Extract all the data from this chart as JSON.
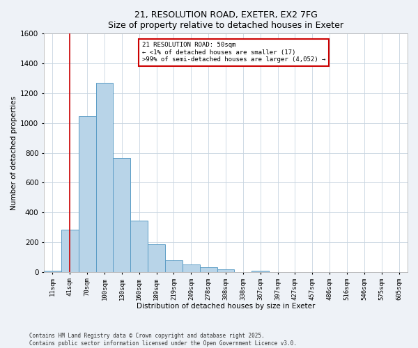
{
  "title": "21, RESOLUTION ROAD, EXETER, EX2 7FG",
  "subtitle": "Size of property relative to detached houses in Exeter",
  "xlabel": "Distribution of detached houses by size in Exeter",
  "ylabel": "Number of detached properties",
  "categories": [
    "11sqm",
    "41sqm",
    "70sqm",
    "100sqm",
    "130sqm",
    "160sqm",
    "189sqm",
    "219sqm",
    "249sqm",
    "278sqm",
    "308sqm",
    "338sqm",
    "367sqm",
    "397sqm",
    "427sqm",
    "457sqm",
    "486sqm",
    "516sqm",
    "546sqm",
    "575sqm",
    "605sqm"
  ],
  "values": [
    10,
    285,
    1045,
    1270,
    765,
    345,
    185,
    80,
    50,
    32,
    20,
    0,
    10,
    0,
    0,
    0,
    0,
    0,
    0,
    0,
    0
  ],
  "bar_color": "#b8d4e8",
  "bar_edge_color": "#5a9cc5",
  "vline_x": 1,
  "vline_color": "#cc0000",
  "ylim": [
    0,
    1600
  ],
  "yticks": [
    0,
    200,
    400,
    600,
    800,
    1000,
    1200,
    1400,
    1600
  ],
  "annotation_title": "21 RESOLUTION ROAD: 50sqm",
  "annotation_line1": "← <1% of detached houses are smaller (17)",
  "annotation_line2": ">99% of semi-detached houses are larger (4,052) →",
  "annotation_box_color": "#ffffff",
  "annotation_box_edge": "#cc0000",
  "footnote1": "Contains HM Land Registry data © Crown copyright and database right 2025.",
  "footnote2": "Contains public sector information licensed under the Open Government Licence v3.0.",
  "bg_color": "#eef2f7",
  "plot_bg_color": "#ffffff",
  "grid_color": "#c8d4e0"
}
